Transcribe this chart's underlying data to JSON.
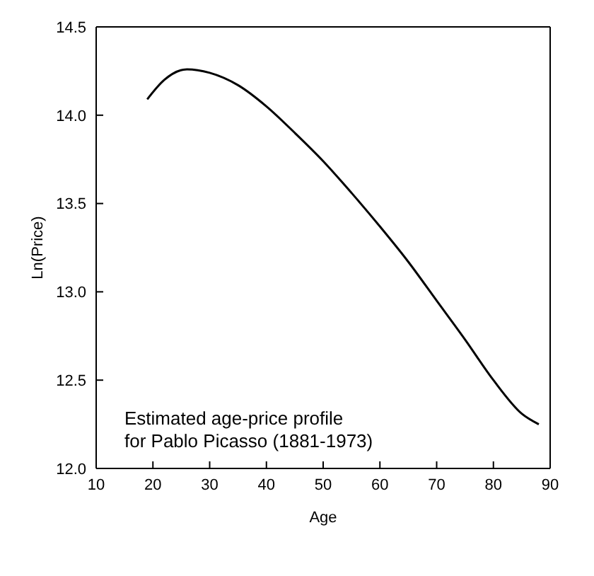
{
  "chart_data": {
    "type": "line",
    "xlabel": "Age",
    "ylabel": "Ln(Price)",
    "annotations": [
      "Estimated age-price profile\nfor Pablo Picasso (1881-1973)"
    ],
    "x": [
      19,
      22,
      26,
      30,
      35,
      40,
      45,
      50,
      55,
      60,
      65,
      70,
      75,
      80,
      85,
      88
    ],
    "series": [
      {
        "color": "#000000",
        "values": [
          14.09,
          14.2,
          14.26,
          14.24,
          14.17,
          14.05,
          13.9,
          13.74,
          13.56,
          13.37,
          13.17,
          12.95,
          12.73,
          12.5,
          12.31,
          12.25
        ]
      }
    ],
    "xlim": [
      10,
      90
    ],
    "xticks": [
      10,
      20,
      30,
      40,
      50,
      60,
      70,
      80,
      90
    ],
    "ylim": [
      12,
      14.5
    ],
    "yticks": [
      {
        "value": 12,
        "label": "12.0"
      },
      {
        "value": 12.5,
        "label": "12.5"
      },
      {
        "value": 13,
        "label": "13.0"
      },
      {
        "value": 13.5,
        "label": "13.5"
      },
      {
        "value": 14,
        "label": "14.0"
      },
      {
        "value": 14.5,
        "label": "14.5"
      }
    ],
    "marker": "none",
    "line_style": "solid",
    "grid": false,
    "legend": false
  }
}
